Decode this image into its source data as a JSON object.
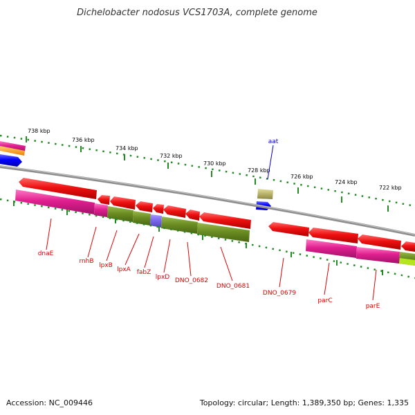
{
  "title": "Dichelobacter nodosus VCS1703A, complete genome",
  "footer": {
    "accession": "Accession: NC_009446",
    "topology": "Topology: circular; Length: 1,389,350 bp; Genes: 1,335"
  },
  "kbp_labels": [
    "738 kbp",
    "736 kbp",
    "734 kbp",
    "732 kbp",
    "730 kbp",
    "728 kbp",
    "726 kbp",
    "724 kbp",
    "722 kbp"
  ],
  "gene_labels": [
    "aat",
    "dnaE",
    "rnhB",
    "lpxB",
    "lpxA",
    "fabZ",
    "lpxD",
    "DNO_0682",
    "DNO_0681",
    "DNO_0679",
    "parC",
    "parE"
  ],
  "colors": {
    "gene_red": "#ee1111",
    "gene_magenta": "#e0208f",
    "gene_olive": "#6b8e23",
    "gene_purple": "#7b68ee",
    "gene_blue": "#0000ff",
    "gene_khaki": "#bdb76b",
    "backbone": "#888888",
    "tick_green": "#228b22",
    "label_red": "#e00000",
    "label_blue": "#0000cc"
  }
}
